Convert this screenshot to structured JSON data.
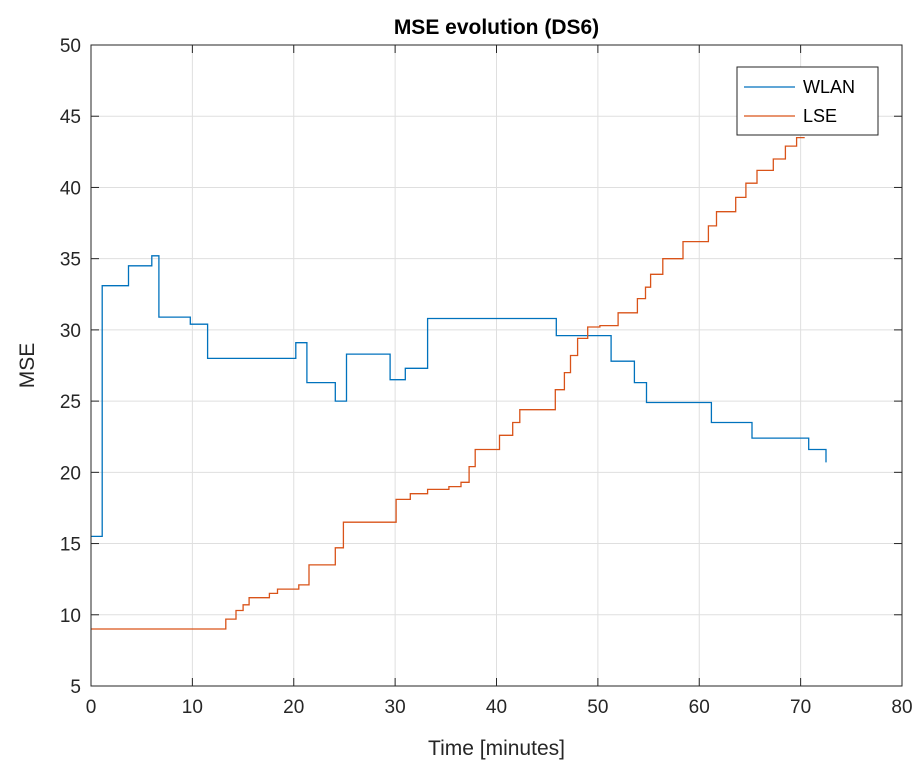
{
  "chart_data": {
    "type": "line",
    "title": "MSE evolution (DS6)",
    "xlabel": "Time [minutes]",
    "ylabel": "MSE",
    "xlim": [
      0,
      80
    ],
    "ylim": [
      5,
      50
    ],
    "xticks": [
      0,
      10,
      20,
      30,
      40,
      50,
      60,
      70,
      80
    ],
    "yticks": [
      5,
      10,
      15,
      20,
      25,
      30,
      35,
      40,
      45,
      50
    ],
    "grid": true,
    "legend_position": "top-right",
    "series": [
      {
        "name": "WLAN",
        "color": "#0072BD",
        "step": true,
        "x": [
          0,
          1.1,
          3.7,
          6.0,
          6.7,
          9.8,
          11.5,
          20.2,
          21.3,
          24.1,
          25.2,
          29.5,
          31.0,
          33.2,
          45.9,
          51.3,
          53.6,
          54.8,
          61.2,
          65.2,
          70.8,
          72.5
        ],
        "y": [
          15.5,
          33.1,
          34.5,
          35.2,
          30.9,
          30.4,
          28.0,
          29.1,
          26.3,
          25.0,
          28.3,
          26.5,
          27.3,
          30.8,
          29.6,
          27.8,
          26.3,
          24.9,
          23.5,
          22.4,
          21.6,
          20.7
        ]
      },
      {
        "name": "LSE",
        "color": "#D95319",
        "step": true,
        "x": [
          0,
          13.3,
          14.3,
          15.0,
          15.6,
          16.7,
          17.6,
          18.4,
          19.5,
          20.5,
          21.5,
          24.1,
          24.9,
          25.3,
          30.1,
          31.5,
          33.2,
          35.3,
          36.5,
          37.3,
          37.9,
          38.8,
          40.3,
          41.6,
          42.3,
          43.4,
          45.8,
          46.7,
          47.3,
          48.0,
          49.0,
          50.2,
          52.0,
          53.9,
          54.7,
          55.2,
          56.4,
          58.4,
          60.9,
          61.7,
          63.6,
          64.6,
          65.7,
          66.4,
          67.3,
          68.5,
          69.6,
          70.4
        ],
        "y": [
          9.0,
          9.7,
          10.3,
          10.7,
          11.2,
          11.2,
          11.5,
          11.8,
          11.8,
          12.1,
          13.5,
          14.7,
          16.5,
          16.5,
          18.1,
          18.5,
          18.8,
          19.0,
          19.3,
          20.4,
          21.6,
          21.6,
          22.6,
          23.5,
          24.4,
          24.4,
          25.8,
          27.0,
          28.2,
          29.4,
          30.2,
          30.3,
          31.2,
          32.2,
          33.0,
          33.9,
          35.0,
          36.2,
          37.3,
          38.3,
          39.3,
          40.3,
          41.2,
          41.2,
          42.0,
          42.9,
          43.5,
          43.5
        ]
      }
    ]
  }
}
